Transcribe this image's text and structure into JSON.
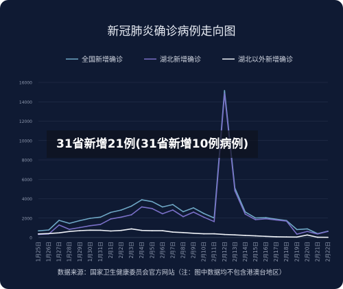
{
  "chart_data": {
    "type": "line",
    "title": "新冠肺炎确诊病例走向图",
    "source_note": "数据来源：国家卫生健康委员会官方网站（注：图中数据均不包含港澳台地区）",
    "categories": [
      "1月25日",
      "1月26日",
      "1月27日",
      "1月28日",
      "1月29日",
      "1月30日",
      "1月31日",
      "2月1日",
      "2月2日",
      "2月3日",
      "2月4日",
      "2月5日",
      "2月6日",
      "2月7日",
      "2月8日",
      "2月9日",
      "2月10日",
      "2月11日",
      "2月12日",
      "2月13日",
      "2月14日",
      "2月15日",
      "2月16日",
      "2月17日",
      "2月18日",
      "2月19日",
      "2月20日",
      "2月21日",
      "2月22日"
    ],
    "yticks": [
      "0",
      "2000",
      "4000",
      "6000",
      "8000",
      "10000",
      "12000",
      "14000",
      "16000"
    ],
    "ylim": [
      0,
      16000
    ],
    "legend_position": "top",
    "series": [
      {
        "name": "全国新增确诊",
        "color": "#6fa8c6",
        "values": [
          690,
          780,
          1770,
          1460,
          1740,
          1980,
          2100,
          2590,
          2830,
          3240,
          3890,
          3700,
          3150,
          3400,
          2660,
          3060,
          2480,
          2020,
          15150,
          5090,
          2640,
          2010,
          2050,
          1890,
          1750,
          820,
          890,
          400,
          650
        ]
      },
      {
        "name": "湖北新增确诊",
        "color": "#7a70c8",
        "values": [
          320,
          370,
          1290,
          840,
          1030,
          1220,
          1350,
          1920,
          2100,
          2340,
          3160,
          2990,
          2450,
          2840,
          2150,
          2620,
          2100,
          1640,
          14840,
          4820,
          2420,
          1840,
          1930,
          1810,
          1690,
          350,
          630,
          370,
          630
        ]
      },
      {
        "name": "湖北以外新增确诊",
        "color": "#eef1f7",
        "values": [
          370,
          410,
          480,
          620,
          710,
          760,
          750,
          670,
          730,
          890,
          730,
          700,
          700,
          560,
          510,
          440,
          380,
          380,
          310,
          270,
          220,
          170,
          120,
          80,
          60,
          50,
          260,
          30,
          20
        ]
      }
    ]
  },
  "overlay": {
    "headline": "31省新增21例(31省新增10例病例)"
  }
}
